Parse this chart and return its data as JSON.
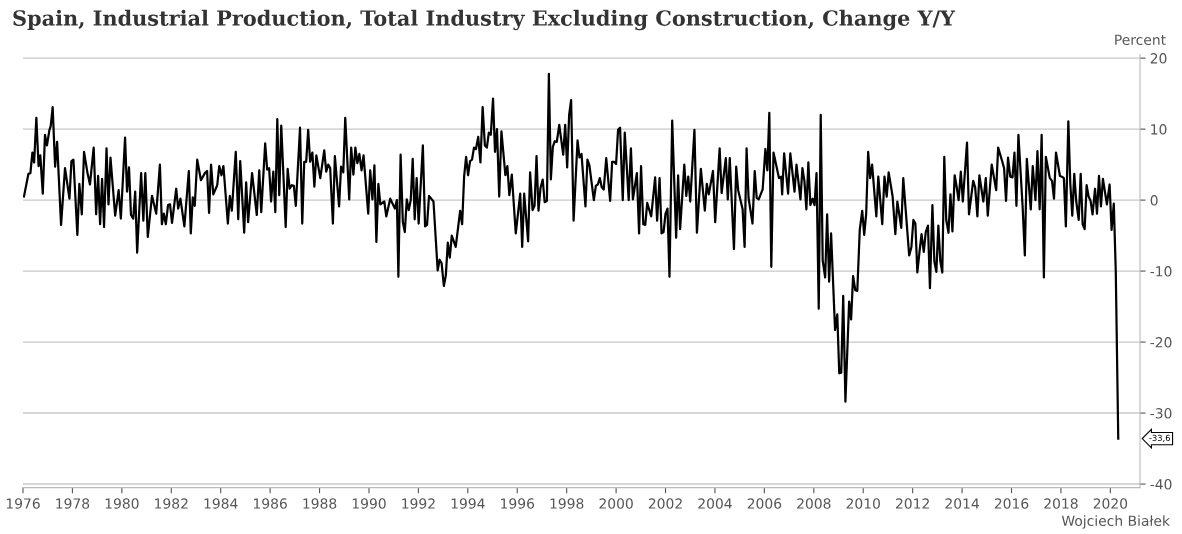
{
  "chart_data": {
    "type": "line",
    "title": "Spain, Industrial Production, Total Industry Excluding Construction, Change Y/Y",
    "ylabel": "Percent",
    "xlim": [
      1976,
      2021.2
    ],
    "xticks": [
      1976,
      1978,
      1980,
      1982,
      1984,
      1986,
      1988,
      1990,
      1992,
      1994,
      1996,
      1998,
      2000,
      2002,
      2004,
      2006,
      2008,
      2010,
      2012,
      2014,
      2016,
      2018,
      2020
    ],
    "ylim": [
      -40.5,
      20.5
    ],
    "yticks": [
      -40,
      -30,
      -20,
      -10,
      0,
      10,
      20
    ],
    "grid": "y",
    "legend": false,
    "marker": "none",
    "line_style": "solid",
    "annotations": [
      "-33,6",
      "Wojciech Białek"
    ],
    "series": [
      {
        "color": "#000000",
        "x": [
          1976.04,
          1976.22,
          1976.3,
          1976.38,
          1976.45,
          1976.54,
          1976.63,
          1976.7,
          1976.8,
          1976.89,
          1976.97,
          1977.07,
          1977.12,
          1977.2,
          1977.3,
          1977.38,
          1977.54,
          1977.7,
          1977.88,
          1977.96,
          1978.04,
          1978.2,
          1978.28,
          1978.38,
          1978.47,
          1978.61,
          1978.71,
          1978.86,
          1978.96,
          1979.04,
          1979.12,
          1979.2,
          1979.28,
          1979.38,
          1979.46,
          1979.54,
          1979.73,
          1979.87,
          1979.96,
          1980.13,
          1980.21,
          1980.29,
          1980.37,
          1980.46,
          1980.54,
          1980.62,
          1980.78,
          1980.87,
          1980.95,
          1981.05,
          1981.22,
          1981.39,
          1981.54,
          1981.62,
          1981.7,
          1981.78,
          1981.87,
          1981.95,
          1982.03,
          1982.2,
          1982.28,
          1982.37,
          1982.53,
          1982.71,
          1982.79,
          1982.87,
          1982.95,
          1983.05,
          1983.2,
          1983.36,
          1983.45,
          1983.53,
          1983.61,
          1983.7,
          1983.86,
          1983.94,
          1984.03,
          1984.11,
          1984.29,
          1984.37,
          1984.45,
          1984.61,
          1984.71,
          1984.79,
          1984.95,
          1985.03,
          1985.11,
          1985.27,
          1985.46,
          1985.56,
          1985.64,
          1985.8,
          1985.88,
          1985.96,
          1986.04,
          1986.13,
          1986.21,
          1986.29,
          1986.37,
          1986.45,
          1986.63,
          1986.71,
          1986.79,
          1986.88,
          1986.96,
          1987.04,
          1987.21,
          1987.3,
          1987.38,
          1987.46,
          1987.54,
          1987.62,
          1987.71,
          1987.79,
          1987.87,
          1988.03,
          1988.19,
          1988.27,
          1988.35,
          1988.43,
          1988.54,
          1988.62,
          1988.79,
          1988.87,
          1988.96,
          1989.04,
          1989.2,
          1989.28,
          1989.37,
          1989.45,
          1989.53,
          1989.61,
          1989.7,
          1989.78,
          1989.97,
          1990.05,
          1990.14,
          1990.22,
          1990.3,
          1990.38,
          1990.46,
          1990.62,
          1990.7,
          1990.86,
          1991.05,
          1991.13,
          1991.19,
          1991.28,
          1991.37,
          1991.45,
          1991.53,
          1991.61,
          1991.69,
          1991.77,
          1991.85,
          1991.93,
          1992.01,
          1992.18,
          1992.27,
          1992.35,
          1992.43,
          1992.61,
          1992.78,
          1992.86,
          1992.94,
          1993.03,
          1993.11,
          1993.19,
          1993.27,
          1993.35,
          1993.51,
          1993.69,
          1993.77,
          1993.85,
          1993.93,
          1994.01,
          1994.09,
          1994.17,
          1994.25,
          1994.33,
          1994.42,
          1994.51,
          1994.6,
          1994.69,
          1994.77,
          1994.85,
          1994.93,
          1995.02,
          1995.1,
          1995.18,
          1995.27,
          1995.36,
          1995.52,
          1995.6,
          1995.68,
          1995.78,
          1995.94,
          1996.12,
          1996.2,
          1996.28,
          1996.44,
          1996.52,
          1996.62,
          1996.7,
          1996.78,
          1996.86,
          1996.94,
          1997.03,
          1997.11,
          1997.2,
          1997.28,
          1997.36,
          1997.44,
          1997.52,
          1997.6,
          1997.7,
          1997.86,
          1997.94,
          1998.02,
          1998.1,
          1998.18,
          1998.28,
          1998.44,
          1998.52,
          1998.6,
          1998.76,
          1998.84,
          1998.92,
          1999.1,
          1999.18,
          1999.26,
          1999.34,
          1999.42,
          1999.5,
          1999.6,
          1999.76,
          1999.84,
          1999.92,
          2000.0,
          2000.08,
          2000.16,
          2000.27,
          2000.35,
          2000.51,
          2000.6,
          2000.68,
          2000.84,
          2000.93,
          2001.01,
          2001.1,
          2001.18,
          2001.26,
          2001.42,
          2001.58,
          2001.66,
          2001.76,
          2001.84,
          2001.92,
          2002.0,
          2002.08,
          2002.16,
          2002.27,
          2002.43,
          2002.51,
          2002.59,
          2002.76,
          2002.84,
          2002.92,
          2003.0,
          2003.17,
          2003.27,
          2003.43,
          2003.59,
          2003.67,
          2003.75,
          2003.92,
          2004.01,
          2004.19,
          2004.27,
          2004.44,
          2004.52,
          2004.6,
          2004.77,
          2004.86,
          2004.94,
          2005.12,
          2005.2,
          2005.28,
          2005.36,
          2005.52,
          2005.61,
          2005.69,
          2005.77,
          2005.93,
          2006.04,
          2006.12,
          2006.2,
          2006.28,
          2006.37,
          2006.59,
          2006.68,
          2006.72,
          2006.8,
          2006.96,
          2007.05,
          2007.22,
          2007.3,
          2007.46,
          2007.54,
          2007.62,
          2007.7,
          2007.78,
          2007.86,
          2007.95,
          2008.03,
          2008.11,
          2008.2,
          2008.28,
          2008.36,
          2008.46,
          2008.54,
          2008.62,
          2008.7,
          2008.86,
          2008.95,
          2009.03,
          2009.11,
          2009.19,
          2009.28,
          2009.43,
          2009.51,
          2009.59,
          2009.68,
          2009.76,
          2009.86,
          2009.96,
          2010.04,
          2010.12,
          2010.2,
          2010.28,
          2010.36,
          2010.53,
          2010.61,
          2010.77,
          2010.86,
          2010.95,
          2011.03,
          2011.19,
          2011.3,
          2011.38,
          2011.54,
          2011.62,
          2011.86,
          2011.95,
          2012.03,
          2012.11,
          2012.19,
          2012.28,
          2012.36,
          2012.45,
          2012.53,
          2012.62,
          2012.7,
          2012.8,
          2012.88,
          2012.96,
          2013.04,
          2013.12,
          2013.2,
          2013.28,
          2013.36,
          2013.45,
          2013.53,
          2013.61,
          2013.7,
          2013.78,
          2013.86,
          2013.95,
          2014.03,
          2014.2,
          2014.28,
          2014.45,
          2014.53,
          2014.62,
          2014.7,
          2014.86,
          2014.96,
          2015.04,
          2015.2,
          2015.38,
          2015.46,
          2015.62,
          2015.7,
          2015.78,
          2015.86,
          2015.95,
          2016.04,
          2016.12,
          2016.2,
          2016.28,
          2016.45,
          2016.54,
          2016.62,
          2016.78,
          2016.86,
          2016.97,
          2017.05,
          2017.14,
          2017.22,
          2017.31,
          2017.39,
          2017.55,
          2017.64,
          2017.72,
          2017.8,
          2017.96,
          2018.04,
          2018.12,
          2018.2,
          2018.3,
          2018.38,
          2018.46,
          2018.54,
          2018.62,
          2018.72,
          2018.8,
          2018.88,
          2018.96,
          2019.04,
          2019.12,
          2019.2,
          2019.28,
          2019.38,
          2019.46,
          2019.54,
          2019.62,
          2019.7,
          2019.86,
          2019.97,
          2020.05,
          2020.14,
          2020.22,
          2020.32
        ],
        "values": [
          0.5,
          3.7,
          3.8,
          6.7,
          5.3,
          11.6,
          4.8,
          6.3,
          0.9,
          9.2,
          7.7,
          9.9,
          10.4,
          13.1,
          4.7,
          8.2,
          -3.5,
          4.5,
          0.2,
          5.5,
          5.7,
          -4.9,
          2.3,
          -2.0,
          6.8,
          3.8,
          2.2,
          7.4,
          -2.0,
          3.4,
          -3.4,
          3.0,
          -3.8,
          7.3,
          -0.6,
          6.0,
          -2.2,
          1.4,
          -2.6,
          8.8,
          1.2,
          4.6,
          -2.1,
          -2.6,
          1.2,
          -7.4,
          3.8,
          -2.9,
          3.8,
          -5.2,
          0.6,
          -1.9,
          5.0,
          -3.4,
          -1.9,
          -3.4,
          -0.7,
          -0.6,
          -3.2,
          1.6,
          -1.2,
          0.2,
          -3.7,
          4.1,
          -4.7,
          0.4,
          -0.8,
          5.7,
          2.8,
          3.8,
          4.1,
          -1.8,
          5.0,
          0.8,
          2.1,
          4.8,
          3.5,
          4.8,
          -3.3,
          0.6,
          -1.5,
          6.8,
          -2.7,
          5.5,
          -4.6,
          2.5,
          -3.1,
          3.8,
          -2.1,
          4.2,
          -1.7,
          8.0,
          4.3,
          4.5,
          -0.2,
          4.0,
          -1.7,
          11.4,
          0.7,
          10.5,
          -3.8,
          4.4,
          1.6,
          2.1,
          2.0,
          -0.8,
          10.2,
          -3.3,
          5.4,
          5.4,
          9.9,
          5.4,
          6.7,
          1.9,
          6.3,
          3.1,
          7.0,
          4.0,
          5.0,
          4.5,
          -3.3,
          6.2,
          -0.9,
          4.7,
          3.9,
          11.6,
          0.1,
          7.4,
          3.6,
          7.4,
          5.2,
          6.5,
          4.2,
          6.3,
          -1.9,
          4.2,
          0.1,
          4.9,
          -5.9,
          2.3,
          -0.6,
          -0.2,
          -2.3,
          0.2,
          -1.2,
          0,
          -10.8,
          6.4,
          -3.1,
          -4.5,
          0.1,
          -1.4,
          0,
          5.8,
          -2.7,
          3.1,
          -3.3,
          7.7,
          -3.7,
          -3.5,
          0.6,
          -0.2,
          -9.9,
          -8.4,
          -8.9,
          -12.1,
          -10.6,
          -6.0,
          -8.1,
          -5.0,
          -6.6,
          -1.5,
          -3.4,
          3.3,
          6.1,
          3.5,
          5.5,
          5.7,
          7.4,
          7.2,
          8.9,
          5.3,
          13.1,
          7.7,
          7.4,
          9.5,
          9.2,
          14.3,
          6.8,
          10.0,
          0.5,
          9.7,
          3.5,
          4.8,
          0.7,
          3.6,
          -4.7,
          0.9,
          -6.6,
          0.9,
          -5.8,
          3.9,
          -1.4,
          -0.8,
          6.2,
          -1.5,
          1.7,
          2.9,
          -0.3,
          -0.1,
          17.8,
          2.9,
          7.5,
          8.3,
          8.2,
          10.6,
          6.4,
          10.6,
          4.6,
          12.0,
          14.1,
          -2.9,
          8.4,
          6.0,
          6.5,
          -0.9,
          5.7,
          4.9,
          0,
          2.0,
          2.2,
          3.1,
          1.8,
          1.5,
          5.9,
          -0.1,
          5.4,
          5.4,
          5.1,
          9.9,
          10.2,
          0,
          9.5,
          0,
          7.3,
          0.1,
          3.8,
          -4.7,
          4.8,
          -3.4,
          -3.5,
          -0.4,
          -2.3,
          3.2,
          -2.9,
          3.1,
          -4.7,
          -4.5,
          -1.9,
          -1.2,
          -10.8,
          11.2,
          -5.3,
          3.5,
          -4.1,
          5.0,
          0.6,
          3.3,
          -0.2,
          9.9,
          -4.6,
          4.4,
          -1.5,
          2.3,
          0.8,
          4.1,
          -3.1,
          7.3,
          1.0,
          5.9,
          0.1,
          5.9,
          -6.9,
          4.7,
          1.4,
          -1.3,
          -6.6,
          7.3,
          0.3,
          -3.3,
          4.1,
          0.3,
          0.1,
          1.5,
          7.2,
          4.2,
          12.3,
          -9.4,
          6.7,
          3.1,
          3.3,
          0.8,
          6.6,
          0.9,
          6.6,
          1.2,
          5.0,
          0.1,
          4.5,
          2.7,
          -1.3,
          5.3,
          -0.7,
          0.2,
          -0.7,
          3.8,
          -15.3,
          12.0,
          -8.5,
          -10.9,
          -2.0,
          -11.5,
          -4.7,
          -18.3,
          -16.1,
          -24.4,
          -24.3,
          -13.5,
          -28.4,
          -14.3,
          -16.8,
          -10.7,
          -12.7,
          -12.8,
          -4.2,
          -1.5,
          -4.9,
          -1.9,
          6.8,
          3.1,
          5.0,
          -2.3,
          3.3,
          -3.4,
          3.3,
          0.5,
          3.9,
          0.5,
          -4.8,
          -0.2,
          -3.9,
          3.1,
          -7.8,
          -6.6,
          -2.8,
          -3.3,
          -10.2,
          -7.2,
          -4.8,
          -7.3,
          -4.5,
          -3.6,
          -12.4,
          -0.7,
          -8.7,
          -10.1,
          -3.6,
          -8.6,
          -10.2,
          6.1,
          -2.8,
          -4.6,
          0.8,
          -4.4,
          3.5,
          1.9,
          0,
          4.0,
          -0.2,
          8.1,
          -2.0,
          2.7,
          1.8,
          -2.3,
          3.5,
          -0.2,
          3.1,
          -2.2,
          5.0,
          1.4,
          7.4,
          5.5,
          4.5,
          -0.1,
          6.0,
          3.3,
          3.2,
          6.7,
          -0.8,
          9.2,
          -0.9,
          -7.8,
          5.8,
          -1.3,
          4.8,
          0,
          6.9,
          -1.3,
          9.2,
          -10.9,
          6.1,
          3.1,
          2.7,
          0.2,
          6.7,
          3.4,
          3.3,
          3.1,
          -3.7,
          11.1,
          2.3,
          -2.2,
          3.7,
          -0.2,
          -2.8,
          3.7,
          -3.4,
          -4.1,
          2.1,
          0.5,
          -0.1,
          -2.0,
          1.6,
          -1.9,
          3.4,
          -0.9,
          3.0,
          -0.6,
          2.2,
          -4.2,
          -0.5,
          -10.1,
          -33.6
        ]
      }
    ]
  }
}
